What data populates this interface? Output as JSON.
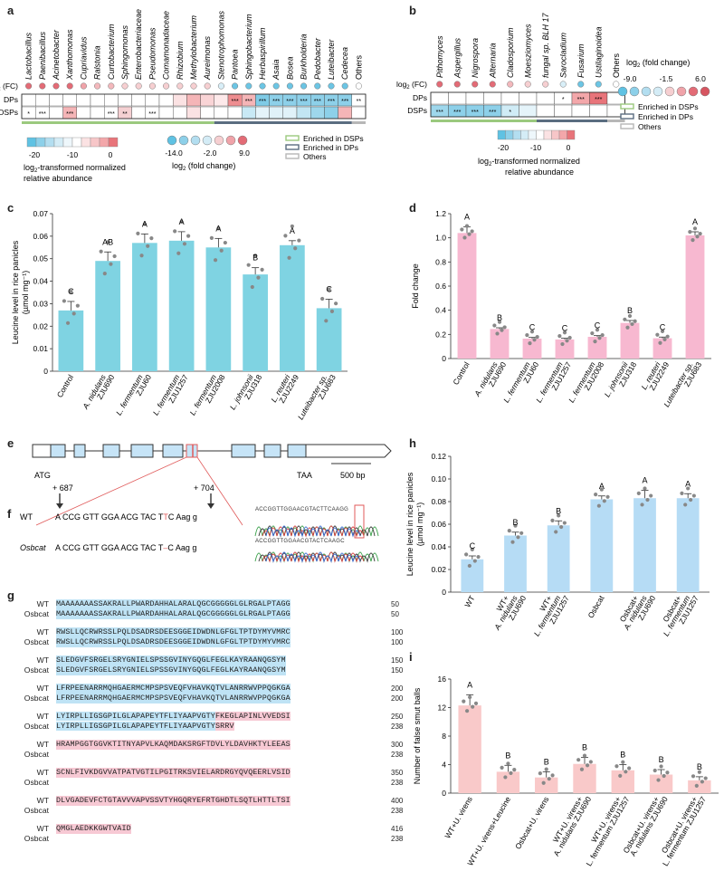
{
  "panel_labels": {
    "a": "a",
    "b": "b",
    "c": "c",
    "d": "d",
    "e": "e",
    "f": "f",
    "g": "g",
    "h": "h",
    "i": "i"
  },
  "panel_a": {
    "taxa": [
      "Lactobacillus",
      "Paenibacillus",
      "Acinetobacter",
      "Xanthomonas",
      "Cupriavidus",
      "Ralstonia",
      "Curtobacterium",
      "Sphingomonas",
      "Enterobacteriaceae",
      "Pseudomonas",
      "Comamonadaceae",
      "Rhizobium",
      "Methylobacterium",
      "Aureimonas",
      "Stenotrophomonas",
      "Pantoea",
      "Sphingobacterium",
      "Herbaspirillum",
      "Asaia",
      "Bosea",
      "Burkholderia",
      "Pedobacter",
      "Luteibacter",
      "Cedecea",
      "Others"
    ],
    "fc_colors": [
      "#e36b76",
      "#e36b76",
      "#e36b76",
      "#e36b76",
      "#f0a3a9",
      "#f3b8bc",
      "#f3b8bc",
      "#f6cfd1",
      "#f6cfd1",
      "#f6cfd1",
      "#f6cfd1",
      "#f6cfd1",
      "#f6cfd1",
      "#f6cfd1",
      "#d9eff8",
      "#6cc5e4",
      "#6cc5e4",
      "#6cc5e4",
      "#6cc5e4",
      "#6cc5e4",
      "#6cc5e4",
      "#6cc5e4",
      "#6cc5e4",
      "#6cc5e4",
      "#ffffff"
    ],
    "row_labels": [
      "log2 (FC)",
      "DPs",
      "DSPs"
    ],
    "dps_colors": [
      "#ffffff",
      "#ffffff",
      "#ffffff",
      "#ffffff",
      "#ffffff",
      "#ffffff",
      "#ffffff",
      "#ffffff",
      "#ffffff",
      "#ffffff",
      "#ffffff",
      "#fbe2e3",
      "#f5b5b7",
      "#f9d4d6",
      "#fde9ea",
      "#ee8d90",
      "#f5b5b7",
      "#7fcbe6",
      "#8dd0e9",
      "#8dd0e9",
      "#8dd0e9",
      "#8dd0e9",
      "#8dd0e9",
      "#8dd0e9",
      "#ffffff"
    ],
    "dsps_colors": [
      "#ffffff",
      "#ffffff",
      "#ffffff",
      "#f5b5b7",
      "#ffffff",
      "#ffffff",
      "#ffffff",
      "#f5d0d2",
      "#ffffff",
      "#ffffff",
      "#ffffff",
      "#ffffff",
      "#fbe2e3",
      "#ffffff",
      "#ffffff",
      "#ffffff",
      "#c8e9f5",
      "#e5f4fa",
      "#e0f2f9",
      "#e0f2f9",
      "#c2e6f3",
      "#9ed7ec",
      "#8dd0e9",
      "#f5b5b7",
      "#ffffff"
    ],
    "dps_stars": [
      "",
      "",
      "",
      "",
      "",
      "",
      "",
      "",
      "",
      "",
      "",
      "",
      "",
      "",
      "",
      "***",
      "***",
      "***",
      "***",
      "***",
      "***",
      "***",
      "***",
      "***",
      "**"
    ],
    "dsps_stars": [
      "*",
      "***",
      "",
      "***",
      "",
      "",
      "***",
      "**",
      "",
      "***",
      "",
      "",
      "",
      "",
      "",
      "",
      "",
      "",
      "",
      "",
      "",
      "",
      "",
      "",
      ""
    ],
    "group_colors": {
      "dsp": "#9bc97e",
      "dp": "#5a6d80",
      "others": "#b7b7b7"
    },
    "scale_ticks": [
      "-20",
      "-10",
      "0"
    ],
    "scale_title_1": "log",
    "scale_title_sub": "2",
    "scale_title_2": "-transformed normalized",
    "scale_title_3": "relative abundance",
    "fc_ticks": [
      "-14.0",
      "-2.0",
      "9.0"
    ],
    "fc_title_1": "log",
    "fc_title_sub": "2",
    "fc_title_2": " (fold change)",
    "legend": [
      "Enriched in DSPs",
      "Enriched in DPs",
      "Others"
    ]
  },
  "panel_b": {
    "taxa": [
      "Pithomyces",
      "Aspergillus",
      "Nigrospora",
      "Alternaria",
      "Cladosporium",
      "Moesziomyces",
      "fungal sp. BLH 17",
      "Sarocladium",
      "Fusarium",
      "Ustilaginoidea",
      "Others"
    ],
    "fc_colors": [
      "#e36b76",
      "#e36b76",
      "#e36b76",
      "#e36b76",
      "#f3b8bc",
      "#f6cfd1",
      "#f6cfd1",
      "#d9eff8",
      "#6cc5e4",
      "#6cc5e4",
      "#ffffff"
    ],
    "row_labels": [
      "log2 (FC)",
      "DPs",
      "DSPs"
    ],
    "dps_colors": [
      "#ffffff",
      "#ffffff",
      "#ffffff",
      "#ffffff",
      "#ffffff",
      "#ffffff",
      "#ffffff",
      "#ffffff",
      "#f3a7aa",
      "#e8747a",
      "#ffffff"
    ],
    "dsps_colors": [
      "#9ed7ec",
      "#8dd0e9",
      "#8dd0e9",
      "#8dd0e9",
      "#d0ecf6",
      "#e5f4fa",
      "#ffffff",
      "#ffffff",
      "#ffffff",
      "#ffffff",
      "#ffffff"
    ],
    "dps_stars": [
      "",
      "",
      "",
      "",
      "",
      "",
      "",
      "*",
      "***",
      "***",
      ""
    ],
    "dsps_stars": [
      "***",
      "***",
      "***",
      "***",
      "*",
      "",
      "",
      "",
      "",
      "",
      ""
    ],
    "fc_legend_title_1": "log",
    "fc_legend_title_sub": "2",
    "fc_legend_title_2": " (fold change)",
    "fc_ticks": [
      "-9.0",
      "-1.5",
      "6.0"
    ],
    "legend": [
      "Enriched in DSPs",
      "Enriched in DPs",
      "Others"
    ],
    "scale_ticks": [
      "-20",
      "-10",
      "0"
    ],
    "scale_title_1": "log",
    "scale_title_sub": "2",
    "scale_title_2": "-transformed normalized",
    "scale_title_3": "relative abundance"
  },
  "chart_data": [
    {
      "id": "c",
      "type": "bar",
      "categories": [
        "Control",
        "A. nidulans ZJU690",
        "L. fermentum ZJU60",
        "L. fermentum ZJU1257",
        "L. fermentum ZJU2008",
        "L. johnsonii ZJU318",
        "L. reuteri ZJU2249",
        "Luteibacter sp. ZJU683"
      ],
      "values": [
        0.027,
        0.049,
        0.057,
        0.058,
        0.055,
        0.043,
        0.056,
        0.028
      ],
      "errors": [
        0.004,
        0.004,
        0.004,
        0.004,
        0.004,
        0.003,
        0.002,
        0.004
      ],
      "letters": [
        "C",
        "AB",
        "A",
        "A",
        "A",
        "B",
        "A",
        "C"
      ],
      "ylabel": "Leucine level in rice panicles",
      "ylabel2": "(µmol mg⁻¹)",
      "ylim": [
        0,
        0.07
      ],
      "yticks": [
        "0",
        "0.01",
        "0.02",
        "0.03",
        "0.04",
        "0.05",
        "0.06",
        "0.07"
      ],
      "color": "#7fd3e2"
    },
    {
      "id": "d",
      "type": "bar",
      "categories": [
        "Control",
        "A. nidulans ZJU690",
        "L. fermentum ZJU60",
        "L. fermentum ZJU1257",
        "L. fermentum ZJU2008",
        "L. johnsonii ZJU318",
        "L. reuteri ZJU2249",
        "Luteibacter sp. ZJU683"
      ],
      "values": [
        1.04,
        0.245,
        0.165,
        0.158,
        0.18,
        0.295,
        0.168,
        1.02
      ],
      "errors": [
        0.05,
        0.01,
        0.01,
        0.01,
        0.01,
        0.02,
        0.01,
        0.03
      ],
      "letters": [
        "A",
        "B",
        "C",
        "C",
        "C",
        "B",
        "C",
        "A"
      ],
      "ylabel": "Fold change",
      "ylim": [
        0,
        1.2
      ],
      "yticks": [
        "0",
        "0.2",
        "0.4",
        "0.6",
        "0.8",
        "1.0",
        "1.2"
      ],
      "color": "#f7b8d0"
    },
    {
      "id": "h",
      "type": "bar",
      "categories": [
        "WT",
        "WT+ A. nidulans ZJU690",
        "WT+ L. fermentum ZJU1257",
        "Osbcat",
        "Osbcat+ A. nidulans ZJU690",
        "Osbcat+ L. fermentum ZJU1257"
      ],
      "values": [
        0.029,
        0.05,
        0.059,
        0.082,
        0.083,
        0.083
      ],
      "errors": [
        0.003,
        0.003,
        0.004,
        0.003,
        0.007,
        0.004
      ],
      "letters": [
        "C",
        "B",
        "B",
        "A",
        "A",
        "A"
      ],
      "ylabel": "Leucine level in rice panicles",
      "ylabel2": "(µmol mg⁻¹)",
      "ylim": [
        0,
        0.12
      ],
      "yticks": [
        "0",
        "0.02",
        "0.04",
        "0.06",
        "0.08",
        "0.10",
        "0.12"
      ],
      "color": "#b6dcf5"
    },
    {
      "id": "i",
      "type": "bar",
      "categories": [
        "WT+U. virens",
        "WT+U. virens+Leucine",
        "Osbcat+U. virens",
        "WT+U. virens+ A. nidulans ZJU690",
        "WT+U. virens+ L. fermentum ZJU1257",
        "Osbcat+U. virens+ A. nidulans ZJU690",
        "Osbcat+U. virens+ L. fermentum ZJU1257"
      ],
      "values": [
        12.3,
        3.0,
        2.2,
        4.1,
        3.2,
        2.6,
        1.8
      ],
      "errors": [
        1.5,
        0.9,
        0.8,
        0.9,
        0.8,
        0.7,
        0.5
      ],
      "letters": [
        "A",
        "B",
        "B",
        "B",
        "B",
        "B",
        "B"
      ],
      "ylabel": "Number of false smut balls",
      "ylim": [
        0,
        16
      ],
      "yticks": [
        "0",
        "4",
        "8",
        "12",
        "16"
      ],
      "color": "#f9c9c9"
    }
  ],
  "panel_e": {
    "atg": "ATG",
    "taa": "TAA",
    "scale": "500 bp"
  },
  "panel_f": {
    "pos1": "+ 687",
    "pos2": "+ 704",
    "wt_label": "WT",
    "wt_seq_a": "A CCG GTT GGA ACG TAC T",
    "wt_seq_b": "T",
    "wt_seq_c": "C Aag g",
    "mut_label": "Osbcat",
    "mut_seq_a": "A CCG GTT GGA ACG TAC T",
    "mut_seq_b": "–",
    "mut_seq_c": "C Aag g",
    "trace_wt": "ACCGGTTGGAACGTACTTCAAGG",
    "trace_mut": "ACCGGTTGGAACGTACTCAAGC"
  },
  "panel_g": {
    "rows": [
      {
        "name": "WT",
        "seq": "MAAAAAAASSAKRALLPWARDAHHALARALQGCGGGGGLGLRGALPTAGG",
        "num": "50",
        "hl": "b"
      },
      {
        "name": "Osbcat",
        "seq": "MAAAAAAASSAKRALLPWARDAHHALARALQGCGGGGGLGLRGALPTAGG",
        "num": "50",
        "hl": "b"
      },
      {
        "name": "WT",
        "seq": "RWSLLQCRWRSSLPQLDSADRSDEESGGEIDWDNLGFGLTPTDYMYVMRC",
        "num": "100",
        "hl": "b"
      },
      {
        "name": "Osbcat",
        "seq": "RWSLLQCRWRSSLPQLDSADRSDEESGGEIDWDNLGFGLTPTDYMYVMRC",
        "num": "100",
        "hl": "b"
      },
      {
        "name": "WT",
        "seq": "SLEDGVFSRGELSRYGNIELSPSSGVINYGQGLFEGLKAYRAANQGSYM",
        "num": "150",
        "hl": "b"
      },
      {
        "name": "Osbcat",
        "seq": "SLEDGVFSRGELSRYGNIELSPSSGVINYGQGLFEGLKAYRAANQGSYM",
        "num": "150",
        "hl": "b"
      },
      {
        "name": "WT",
        "seq": "LFRPEENARRMQHGAERMCMPSPSVEQFVHAVKQTVLANRRWVPPQGKGA",
        "num": "200",
        "hl": "b"
      },
      {
        "name": "Osbcat",
        "seq": "LFRPEENARRMQHGAERMCMPSPSVEQFVHAVKQTVLANRRWVPPQGKGA",
        "num": "200",
        "hl": "b"
      },
      {
        "name": "WT",
        "seq": "LYIRPLLIGSGPILGLAPAPEYTFLIYAAPVGTYFKEGLAPINLVVEDSI",
        "num": "250",
        "hl": "bp"
      },
      {
        "name": "Osbcat",
        "seq": "LYIRPLLIGSGPILGLAPAPEYTFLIYAAPVGTYSRRV",
        "num": "238",
        "hl": "bp2"
      },
      {
        "name": "WT",
        "seq": "HRAMPGGTGGVKTITNYAPVLKAQMDAKSRGFTDVLYLDAVHKTYLEEAS",
        "num": "300",
        "hl": "p"
      },
      {
        "name": "Osbcat",
        "seq": "",
        "num": "238",
        "hl": ""
      },
      {
        "name": "WT",
        "seq": "SCNLFIVKDGVVATPATVGTILPGITRKSVIELARDRGYQVQEERLVSID",
        "num": "350",
        "hl": "p"
      },
      {
        "name": "Osbcat",
        "seq": "",
        "num": "238",
        "hl": ""
      },
      {
        "name": "WT",
        "seq": "DLVGADEVFCTGTAVVVAPVSSVTYHGQRYEFRTGHDTLSQTLHTTLTSI",
        "num": "400",
        "hl": "p"
      },
      {
        "name": "Osbcat",
        "seq": "",
        "num": "238",
        "hl": ""
      },
      {
        "name": "WT",
        "seq": "QMGLAEDKKGWTVAID",
        "num": "416",
        "hl": "p"
      },
      {
        "name": "Osbcat",
        "seq": "",
        "num": "238",
        "hl": ""
      }
    ]
  }
}
